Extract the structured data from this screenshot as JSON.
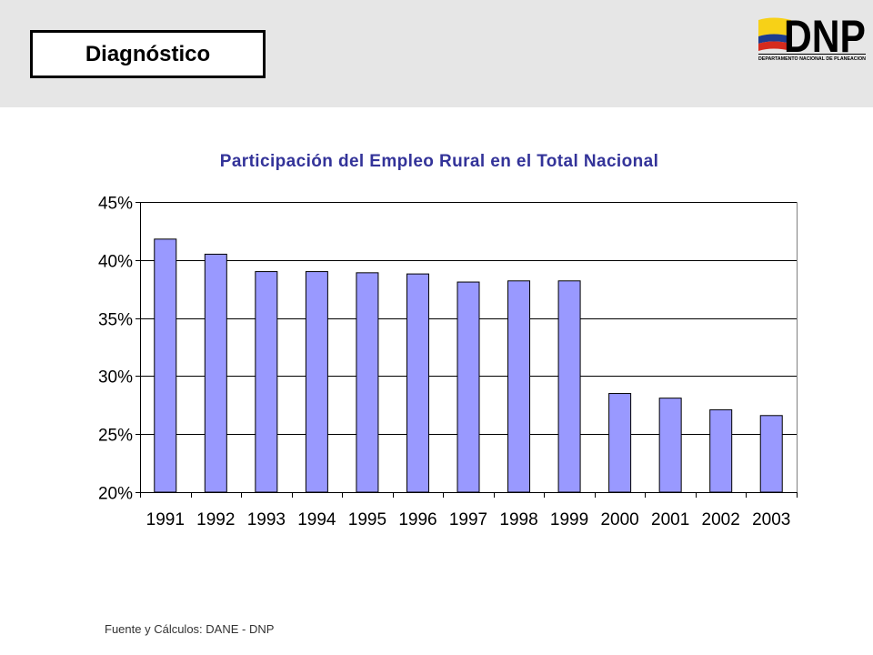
{
  "header": {
    "section_title": "Diagnóstico"
  },
  "logo": {
    "wordmark": "DNP",
    "subtitle": "DEPARTAMENTO NACIONAL DE PLANEACION",
    "flag_colors": [
      "#f7d117",
      "#1d3c8f",
      "#d52b1e"
    ]
  },
  "colors": {
    "header_bg": "#e6e6e6",
    "title": "#333399",
    "bar_fill": "#9999ff",
    "bar_stroke": "#000000"
  },
  "chart_data": {
    "type": "bar",
    "title": "Participación del Empleo Rural en el Total Nacional",
    "xlabel": "",
    "ylabel": "",
    "categories": [
      "1991",
      "1992",
      "1993",
      "1994",
      "1995",
      "1996",
      "1997",
      "1998",
      "1999",
      "2000",
      "2001",
      "2002",
      "2003"
    ],
    "values": [
      41.8,
      40.5,
      39.0,
      39.0,
      38.9,
      38.8,
      38.1,
      38.2,
      38.2,
      28.5,
      28.1,
      27.1,
      26.6
    ],
    "ylim": [
      20,
      45
    ],
    "yticks": [
      45,
      40,
      35,
      30,
      25,
      20
    ],
    "ytick_labels": [
      "45%",
      "40%",
      "35%",
      "30%",
      "25%",
      "20%"
    ],
    "grid": true
  },
  "footer": {
    "source": "Fuente y Cálculos: DANE - DNP"
  }
}
